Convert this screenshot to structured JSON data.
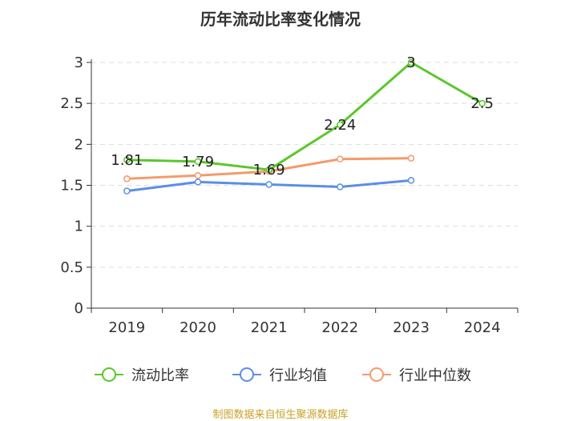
{
  "chart_data": {
    "type": "line",
    "title": "历年流动比率变化情况",
    "categories": [
      "2019",
      "2020",
      "2021",
      "2022",
      "2023",
      "2024"
    ],
    "ylim": [
      0,
      3
    ],
    "yticks": [
      "0",
      "0.5",
      "1",
      "1.5",
      "2",
      "2.5",
      "3"
    ],
    "grid": true,
    "legend_position": "bottom",
    "series": [
      {
        "name": "流动比率",
        "color": "#5ac72b",
        "values": [
          1.81,
          1.79,
          1.69,
          2.24,
          3.0,
          2.5
        ],
        "labels": [
          "1.81",
          "1.79",
          "1.69",
          "2.24",
          "3",
          "2.5"
        ]
      },
      {
        "name": "行业均值",
        "color": "#5b8ee6",
        "values": [
          1.43,
          1.54,
          1.51,
          1.48,
          1.56,
          null
        ]
      },
      {
        "name": "行业中位数",
        "color": "#f59a6b",
        "values": [
          1.58,
          1.62,
          1.67,
          1.82,
          1.83,
          null
        ]
      }
    ]
  },
  "footer": {
    "source": "制图数据来自恒生聚源数据库"
  }
}
